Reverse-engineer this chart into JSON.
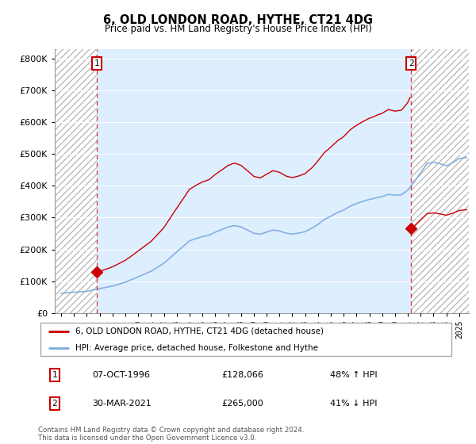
{
  "title": "6, OLD LONDON ROAD, HYTHE, CT21 4DG",
  "subtitle": "Price paid vs. HM Land Registry's House Price Index (HPI)",
  "legend_label_red": "6, OLD LONDON ROAD, HYTHE, CT21 4DG (detached house)",
  "legend_label_blue": "HPI: Average price, detached house, Folkestone and Hythe",
  "table_row1": [
    "1",
    "07-OCT-1996",
    "£128,066",
    "48% ↑ HPI"
  ],
  "table_row2": [
    "2",
    "30-MAR-2021",
    "£265,000",
    "41% ↓ HPI"
  ],
  "footer": "Contains HM Land Registry data © Crown copyright and database right 2024.\nThis data is licensed under the Open Government Licence v3.0.",
  "red_color": "#cc0000",
  "blue_color": "#7aaadd",
  "chart_bg_color": "#ddeeff",
  "hatch_color": "#cccccc",
  "sale1_x": 1996.792,
  "sale1_y": 128066,
  "sale2_x": 2021.247,
  "sale2_y": 265000,
  "ylim": [
    0,
    830000
  ],
  "xlim_left": 1993.5,
  "xlim_right": 2025.75
}
